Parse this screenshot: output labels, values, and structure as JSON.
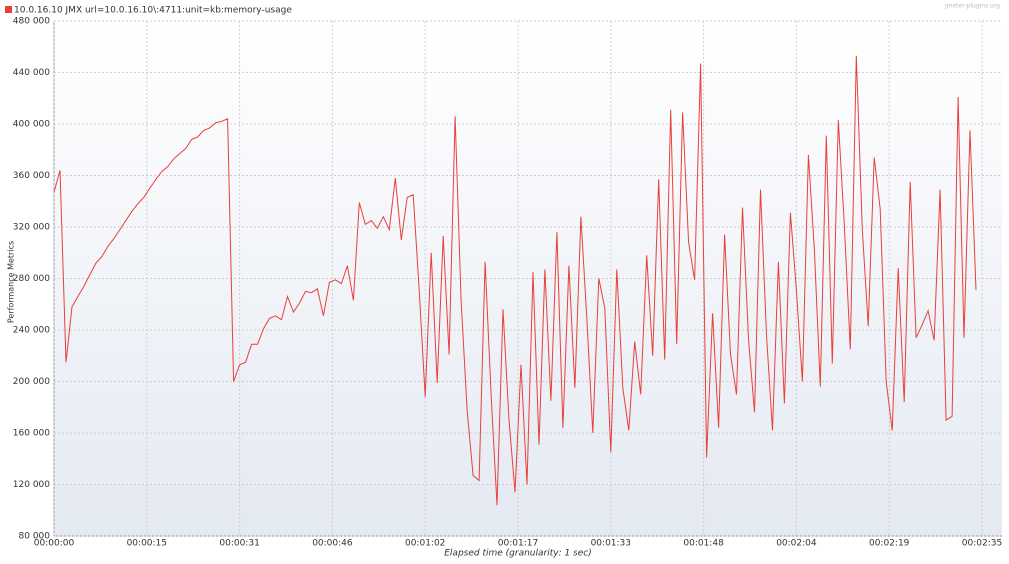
{
  "chart_data": {
    "type": "line",
    "legend_location": "top-left",
    "watermark": "jmeter-plugins.org",
    "y_label": "Performance Metrics",
    "x_label": "Elapsed time (granularity: 1 sec)",
    "grid": true,
    "ylim": [
      80000,
      480000
    ],
    "yticks": [
      {
        "value": 80000,
        "label": "80 000"
      },
      {
        "value": 120000,
        "label": "120 000"
      },
      {
        "value": 160000,
        "label": "160 000"
      },
      {
        "value": 200000,
        "label": "200 000"
      },
      {
        "value": 240000,
        "label": "240 000"
      },
      {
        "value": 280000,
        "label": "280 000"
      },
      {
        "value": 320000,
        "label": "320 000"
      },
      {
        "value": 360000,
        "label": "360 000"
      },
      {
        "value": 400000,
        "label": "400 000"
      },
      {
        "value": 440000,
        "label": "440 000"
      },
      {
        "value": 480000,
        "label": "480 000"
      }
    ],
    "xlim": [
      0,
      155
    ],
    "xticks": [
      {
        "value": 0,
        "label": "00:00:00"
      },
      {
        "value": 15.5,
        "label": "00:00:15"
      },
      {
        "value": 31,
        "label": "00:00:31"
      },
      {
        "value": 46.5,
        "label": "00:00:46"
      },
      {
        "value": 62,
        "label": "00:01:02"
      },
      {
        "value": 77.5,
        "label": "00:01:17"
      },
      {
        "value": 93,
        "label": "00:01:33"
      },
      {
        "value": 108.5,
        "label": "00:01:48"
      },
      {
        "value": 124,
        "label": "00:02:04"
      },
      {
        "value": 139.5,
        "label": "00:02:19"
      },
      {
        "value": 155,
        "label": "00:02:35"
      }
    ],
    "x": [
      0,
      1,
      2,
      3,
      4,
      5,
      6,
      7,
      8,
      9,
      10,
      11,
      12,
      13,
      14,
      15,
      16,
      17,
      18,
      19,
      20,
      21,
      22,
      23,
      24,
      25,
      26,
      27,
      28,
      29,
      30,
      31,
      32,
      33,
      34,
      35,
      36,
      37,
      38,
      39,
      40,
      41,
      42,
      43,
      44,
      45,
      46,
      47,
      48,
      49,
      50,
      51,
      52,
      53,
      54,
      55,
      56,
      57,
      58,
      59,
      60,
      61,
      62,
      63,
      64,
      65,
      66,
      67,
      68,
      69,
      70,
      71,
      72,
      73,
      74,
      75,
      76,
      77,
      78,
      79,
      80,
      81,
      82,
      83,
      84,
      85,
      86,
      87,
      88,
      89,
      90,
      91,
      92,
      93,
      94,
      95,
      96,
      97,
      98,
      99,
      100,
      101,
      102,
      103,
      104,
      105,
      106,
      107,
      108,
      109,
      110,
      111,
      112,
      113,
      114,
      115,
      116,
      117,
      118,
      119,
      120,
      121,
      122,
      123,
      124,
      125,
      126,
      127,
      128,
      129,
      130,
      131,
      132,
      133,
      134,
      135,
      136,
      137,
      138,
      139,
      140,
      141,
      142,
      143,
      144,
      145,
      146,
      147,
      148,
      149,
      150,
      151,
      152,
      153,
      154
    ],
    "series": [
      {
        "name": "10.0.16.10 JMX url=10.0.16.10\\:4711:unit=kb:memory-usage",
        "color": "#e8403a",
        "values": [
          347000,
          364000,
          215000,
          258000,
          266000,
          274000,
          283000,
          292000,
          297000,
          305000,
          311000,
          318000,
          325000,
          332000,
          338000,
          343000,
          350000,
          357000,
          363000,
          367000,
          373000,
          377000,
          381000,
          388000,
          390000,
          395000,
          397000,
          401000,
          402000,
          404000,
          200000,
          213000,
          215000,
          229000,
          229000,
          241000,
          249000,
          251000,
          248000,
          266000,
          254000,
          261000,
          270000,
          269000,
          272000,
          251000,
          277000,
          279000,
          276000,
          290000,
          263000,
          339000,
          322000,
          325000,
          319000,
          328000,
          318000,
          358000,
          310000,
          343000,
          345000,
          271000,
          188000,
          300000,
          199000,
          313000,
          221000,
          406000,
          263000,
          178000,
          127000,
          123000,
          293000,
          190000,
          104000,
          256000,
          170000,
          114000,
          213000,
          120000,
          285000,
          151000,
          287000,
          185000,
          316000,
          164000,
          290000,
          195000,
          328000,
          248000,
          160000,
          280000,
          257000,
          145000,
          287000,
          195000,
          162000,
          231000,
          190000,
          298000,
          220000,
          357000,
          217000,
          411000,
          229000,
          409000,
          308000,
          279000,
          447000,
          141000,
          253000,
          164000,
          314000,
          221000,
          190000,
          335000,
          233000,
          176000,
          349000,
          236000,
          162000,
          293000,
          183000,
          331000,
          271000,
          200000,
          376000,
          302000,
          196000,
          391000,
          214000,
          403000,
          322000,
          225000,
          453000,
          318000,
          243000,
          374000,
          334000,
          200000,
          162000,
          288000,
          184000,
          355000,
          234000,
          244000,
          255000,
          232000,
          349000,
          170000,
          173000,
          421000,
          234000,
          395000,
          271000
        ]
      }
    ]
  }
}
